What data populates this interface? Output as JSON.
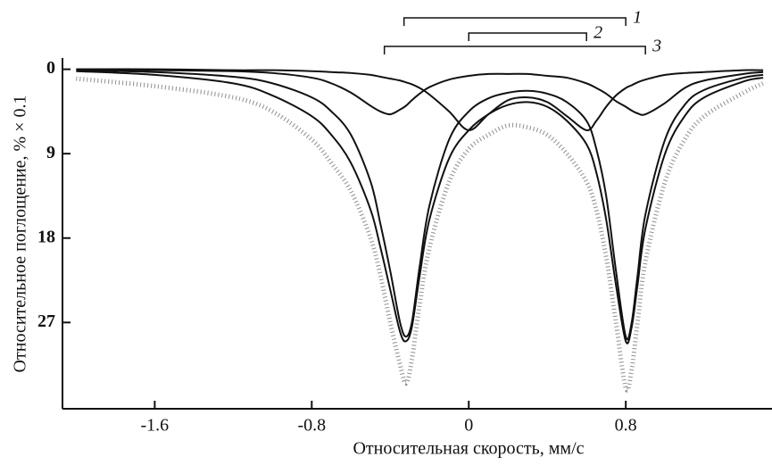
{
  "chart_data": {
    "type": "line",
    "x_label": "Относительная скорость, мм/с",
    "y_label": "Относительное поглощение, % × 0.1",
    "xlim": [
      -2.07,
      1.545
    ],
    "ylim": [
      -1.2,
      36.2
    ],
    "y_inverted": true,
    "xticks": [
      -1.6,
      -0.8,
      0,
      0.8
    ],
    "yticks": [
      0,
      9,
      18,
      27
    ],
    "x": [
      -2.0,
      -1.6,
      -1.2,
      -1.0,
      -0.8,
      -0.7,
      -0.6,
      -0.5,
      -0.45,
      -0.4,
      -0.35,
      -0.32,
      -0.29,
      -0.25,
      -0.2,
      -0.1,
      0,
      0.1,
      0.2,
      0.3,
      0.4,
      0.5,
      0.6,
      0.65,
      0.7,
      0.75,
      0.8,
      0.83,
      0.86,
      0.9,
      1.0,
      1.1,
      1.2,
      1.4,
      1.5
    ],
    "series": [
      {
        "style": "dots",
        "color": "#444444",
        "values": [
          1,
          1.8,
          3,
          4.5,
          7.5,
          10,
          13,
          18,
          22,
          27,
          31.5,
          33.5,
          31,
          25,
          19,
          12,
          8.5,
          7,
          6,
          6.2,
          7,
          9,
          12,
          15,
          20,
          27,
          34,
          32,
          27,
          20.5,
          12,
          7.5,
          5,
          2.5,
          1.5
        ]
      },
      {
        "style": "solid",
        "color": "#111111",
        "values": [
          0.2,
          0.6,
          1.5,
          2.8,
          5,
          7,
          10,
          15,
          19,
          23.5,
          28,
          29,
          27.5,
          22,
          16,
          9.5,
          6.5,
          4.8,
          3.8,
          3.5,
          4,
          5.5,
          8,
          11,
          16,
          23,
          29,
          27.5,
          23,
          17,
          9,
          5,
          3,
          1.3,
          0.9
        ]
      },
      {
        "style": "solid",
        "color": "#111111",
        "values": [
          0.1,
          0.3,
          0.8,
          1.5,
          3,
          4.5,
          7,
          12,
          16.5,
          21.5,
          27,
          28.5,
          27,
          21,
          14.5,
          7.5,
          4.5,
          3.1,
          2.5,
          2.3,
          2.6,
          3.5,
          5.5,
          8.5,
          13.5,
          21.5,
          28.5,
          27,
          22,
          15.5,
          7.5,
          3.8,
          2.2,
          0.9,
          0.6
        ]
      },
      {
        "style": "solid",
        "color": "#111111",
        "values": [
          0,
          0,
          0.1,
          0.1,
          0.2,
          0.3,
          0.4,
          0.6,
          0.8,
          1,
          1.2,
          1.4,
          1.6,
          2,
          2.7,
          4.5,
          6.5,
          4.8,
          3.3,
          3,
          3.5,
          5,
          6.5,
          5.5,
          4,
          2.8,
          2,
          1.7,
          1.4,
          1.1,
          0.6,
          0.4,
          0.3,
          0.1,
          0.1
        ]
      },
      {
        "style": "solid",
        "color": "#111111",
        "values": [
          0,
          0.1,
          0.2,
          0.4,
          0.9,
          1.5,
          2.5,
          3.9,
          4.5,
          4.8,
          4.3,
          3.9,
          3.3,
          2.6,
          1.9,
          1.1,
          0.7,
          0.5,
          0.5,
          0.5,
          0.7,
          0.9,
          1.5,
          2,
          2.6,
          3.4,
          4,
          4.4,
          4.7,
          4.8,
          3.6,
          2,
          1.2,
          0.5,
          0.3
        ]
      }
    ],
    "doublets": [
      {
        "name": "1",
        "x": [
          -0.33,
          0.8
        ]
      },
      {
        "name": "2",
        "x": [
          0,
          0.6
        ]
      },
      {
        "name": "3",
        "x": [
          -0.43,
          0.9
        ]
      }
    ]
  }
}
